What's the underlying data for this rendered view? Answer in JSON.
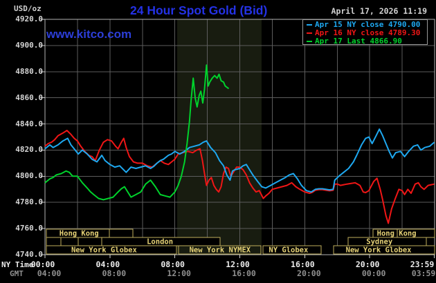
{
  "header": {
    "unit_label": "USD/oz",
    "title": "24 Hour Spot Gold (Bid)",
    "datetime": "April 17, 2026 11:19",
    "watermark": "www.kitco.com"
  },
  "colors": {
    "title_blue": "#2432e6",
    "watermark_blue": "#2c3ed8",
    "apr15_cyan": "#1ea8f0",
    "apr16_red": "#f01616",
    "apr17_green": "#00d22c",
    "session_border": "#bfae5c",
    "session_text": "#e6d276",
    "grid": "#5d5d5d",
    "plot_border": "#b5b5b5",
    "highlight_band": "#181c10",
    "tick_mark": "#cfcfcf"
  },
  "legend": {
    "items": [
      {
        "name": "apr15",
        "label": "Apr 15 NY close 4790.00",
        "color": "#1ea8f0"
      },
      {
        "name": "apr16",
        "label": "Apr 16 NY close 4789.30",
        "color": "#f01616"
      },
      {
        "name": "apr17",
        "label": "Apr 17 Last 4866.90",
        "color": "#00d22c"
      }
    ]
  },
  "y_axis": {
    "ticks": [
      "4920.0",
      "4900.0",
      "4880.0",
      "4860.0",
      "4840.0",
      "4820.0",
      "4800.0",
      "4780.0",
      "4760.0",
      "4740.0"
    ],
    "min": 4740,
    "max": 4920,
    "step": 20
  },
  "x_axis": {
    "ny_label": "NY Time",
    "gmt_label": "GMT",
    "tick_hours": [
      0,
      4,
      8,
      12,
      16,
      20,
      23.983
    ],
    "ny_ticks": [
      "00:00",
      "04:00",
      "08:00",
      "12:00",
      "16:00",
      "20:00",
      "23:59"
    ],
    "gmt_ticks": [
      "04:00",
      "08:00",
      "12:00",
      "16:00",
      "20:00",
      "00:00",
      "03:59"
    ]
  },
  "sessions": {
    "rows": [
      {
        "boxes": [
          {
            "start": 0.09,
            "end": 5.42,
            "divider": 3.96,
            "label": "Hong Kong",
            "label_center": 2.1
          },
          {
            "start": 20.2,
            "end": 24,
            "divider": 21.7,
            "label": "Hong Kong",
            "label_center": 21.66
          }
        ]
      },
      {
        "boxes": [
          {
            "start": 0.09,
            "end": 0.98
          },
          {
            "start": 0.98,
            "end": 2.05
          },
          {
            "start": 2.05,
            "end": 3.5
          },
          {
            "start": 3.5,
            "end": 10.78,
            "label": "London",
            "label_center": 7.08
          },
          {
            "start": 18.67,
            "end": 23.49,
            "label": "Sydney",
            "label_center": 20.6
          }
        ]
      },
      {
        "boxes": [
          {
            "start": 0.09,
            "end": 8.1,
            "label": "New York Globex",
            "label_center": 3.64
          },
          {
            "start": 8.23,
            "end": 13.3,
            "label": "New York NYMEX",
            "label_center": 10.78
          },
          {
            "start": 13.43,
            "end": 17.0,
            "label": "NY Globex",
            "label_center": 15.0
          },
          {
            "start": 17.77,
            "end": 24,
            "label": "New York Globex",
            "label_center": 20.55
          }
        ]
      }
    ]
  },
  "chart_data": {
    "type": "line",
    "title": "24 Hour Spot Gold (Bid)",
    "xlabel": "NY Time (hours)",
    "ylabel": "USD/oz",
    "xlim": [
      0,
      24
    ],
    "ylim": [
      4740,
      4920
    ],
    "y_step": 20,
    "grid": true,
    "legend_position": "top-right",
    "highlight_band_hours": [
      8.14,
      13.34
    ],
    "series": [
      {
        "name": "Apr 16",
        "close_label": "NY close 4789.30",
        "color": "#f01616",
        "points": [
          [
            0,
            4823
          ],
          [
            0.2,
            4825
          ],
          [
            0.4,
            4826
          ],
          [
            0.6,
            4828
          ],
          [
            0.8,
            4831
          ],
          [
            1.1,
            4833
          ],
          [
            1.35,
            4835
          ],
          [
            1.6,
            4832
          ],
          [
            1.8,
            4829
          ],
          [
            2,
            4827
          ],
          [
            2.2,
            4823
          ],
          [
            2.45,
            4819
          ],
          [
            2.7,
            4816
          ],
          [
            2.9,
            4815
          ],
          [
            3.1,
            4812
          ],
          [
            3.35,
            4820
          ],
          [
            3.6,
            4826
          ],
          [
            3.85,
            4828
          ],
          [
            4.1,
            4827
          ],
          [
            4.35,
            4823
          ],
          [
            4.5,
            4821
          ],
          [
            4.7,
            4826
          ],
          [
            4.85,
            4829
          ],
          [
            5,
            4822
          ],
          [
            5.2,
            4815
          ],
          [
            5.45,
            4811
          ],
          [
            5.7,
            4810
          ],
          [
            6,
            4810
          ],
          [
            6.3,
            4808
          ],
          [
            6.6,
            4807
          ],
          [
            6.9,
            4810
          ],
          [
            7.1,
            4812
          ],
          [
            7.35,
            4810
          ],
          [
            7.6,
            4809
          ],
          [
            7.8,
            4811
          ],
          [
            8,
            4813
          ],
          [
            8.2,
            4817
          ],
          [
            8.5,
            4818
          ],
          [
            8.8,
            4819
          ],
          [
            9.1,
            4818
          ],
          [
            9.35,
            4820
          ],
          [
            9.55,
            4821
          ],
          [
            9.7,
            4812
          ],
          [
            9.85,
            4800
          ],
          [
            9.95,
            4793
          ],
          [
            10.1,
            4797
          ],
          [
            10.25,
            4799
          ],
          [
            10.4,
            4793
          ],
          [
            10.55,
            4790
          ],
          [
            10.7,
            4788
          ],
          [
            10.85,
            4792
          ],
          [
            11,
            4802
          ],
          [
            11.15,
            4807
          ],
          [
            11.3,
            4806
          ],
          [
            11.45,
            4800
          ],
          [
            11.6,
            4803
          ],
          [
            11.8,
            4807
          ],
          [
            12,
            4807
          ],
          [
            12.2,
            4805
          ],
          [
            12.4,
            4801
          ],
          [
            12.6,
            4795
          ],
          [
            12.8,
            4791
          ],
          [
            13,
            4788
          ],
          [
            13.2,
            4789
          ],
          [
            13.45,
            4783
          ],
          [
            13.6,
            4785
          ],
          [
            13.8,
            4787
          ],
          [
            14,
            4790
          ],
          [
            14.3,
            4791
          ],
          [
            14.6,
            4792
          ],
          [
            14.9,
            4793
          ],
          [
            15.2,
            4795
          ],
          [
            15.45,
            4792
          ],
          [
            15.7,
            4790
          ],
          [
            16,
            4788
          ],
          [
            16.3,
            4787
          ],
          [
            16.65,
            4789.3
          ],
          [
            17.75,
            4789.3
          ],
          [
            17.85,
            4794
          ],
          [
            18.2,
            4793
          ],
          [
            18.6,
            4794
          ],
          [
            19.1,
            4795
          ],
          [
            19.4,
            4793
          ],
          [
            19.6,
            4788
          ],
          [
            19.75,
            4787.5
          ],
          [
            19.95,
            4789
          ],
          [
            20.25,
            4796
          ],
          [
            20.45,
            4798.5
          ],
          [
            20.65,
            4790
          ],
          [
            20.8,
            4782
          ],
          [
            21,
            4770
          ],
          [
            21.15,
            4764
          ],
          [
            21.35,
            4775
          ],
          [
            21.55,
            4782
          ],
          [
            21.8,
            4790
          ],
          [
            22,
            4789
          ],
          [
            22.15,
            4786
          ],
          [
            22.35,
            4790
          ],
          [
            22.55,
            4787
          ],
          [
            22.8,
            4794
          ],
          [
            23,
            4795
          ],
          [
            23.15,
            4792
          ],
          [
            23.35,
            4790
          ],
          [
            23.6,
            4793
          ],
          [
            23.98,
            4794
          ]
        ]
      },
      {
        "name": "Apr 15",
        "close_label": "NY close 4790.00",
        "color": "#1ea8f0",
        "points": [
          [
            0,
            4821
          ],
          [
            0.3,
            4824
          ],
          [
            0.5,
            4822
          ],
          [
            0.8,
            4824
          ],
          [
            1.1,
            4827
          ],
          [
            1.4,
            4829
          ],
          [
            1.6,
            4824
          ],
          [
            1.8,
            4821
          ],
          [
            2.05,
            4817
          ],
          [
            2.3,
            4820
          ],
          [
            2.6,
            4817
          ],
          [
            2.9,
            4813
          ],
          [
            3.2,
            4811
          ],
          [
            3.5,
            4816
          ],
          [
            3.7,
            4812
          ],
          [
            4,
            4809
          ],
          [
            4.3,
            4807
          ],
          [
            4.6,
            4808
          ],
          [
            5,
            4803
          ],
          [
            5.3,
            4807
          ],
          [
            5.6,
            4806
          ],
          [
            5.9,
            4807
          ],
          [
            6.2,
            4808
          ],
          [
            6.5,
            4806
          ],
          [
            6.9,
            4810
          ],
          [
            7.3,
            4813
          ],
          [
            7.6,
            4816
          ],
          [
            8,
            4819
          ],
          [
            8.3,
            4817
          ],
          [
            8.6,
            4819
          ],
          [
            8.9,
            4822
          ],
          [
            9.2,
            4823
          ],
          [
            9.5,
            4824
          ],
          [
            9.75,
            4826
          ],
          [
            9.95,
            4827
          ],
          [
            10.2,
            4822
          ],
          [
            10.5,
            4818
          ],
          [
            10.75,
            4812
          ],
          [
            11,
            4808
          ],
          [
            11.2,
            4801
          ],
          [
            11.4,
            4797
          ],
          [
            11.55,
            4804
          ],
          [
            11.7,
            4805
          ],
          [
            12,
            4806
          ],
          [
            12.2,
            4808
          ],
          [
            12.4,
            4809
          ],
          [
            12.6,
            4805
          ],
          [
            12.8,
            4801
          ],
          [
            13.1,
            4796
          ],
          [
            13.35,
            4792
          ],
          [
            13.6,
            4791
          ],
          [
            13.9,
            4793
          ],
          [
            14.2,
            4795
          ],
          [
            14.5,
            4797
          ],
          [
            14.8,
            4799
          ],
          [
            15.05,
            4801
          ],
          [
            15.3,
            4802
          ],
          [
            15.55,
            4798
          ],
          [
            15.8,
            4793
          ],
          [
            16.1,
            4789
          ],
          [
            16.4,
            4788
          ],
          [
            16.65,
            4790
          ],
          [
            17.75,
            4790
          ],
          [
            17.85,
            4797
          ],
          [
            18.1,
            4800
          ],
          [
            18.4,
            4803
          ],
          [
            18.7,
            4806
          ],
          [
            19,
            4811
          ],
          [
            19.2,
            4816
          ],
          [
            19.5,
            4824
          ],
          [
            19.75,
            4829
          ],
          [
            19.95,
            4830
          ],
          [
            20.15,
            4825
          ],
          [
            20.4,
            4831
          ],
          [
            20.6,
            4836
          ],
          [
            20.8,
            4831
          ],
          [
            21,
            4825
          ],
          [
            21.2,
            4819
          ],
          [
            21.4,
            4814
          ],
          [
            21.6,
            4818
          ],
          [
            21.9,
            4819
          ],
          [
            22.15,
            4815
          ],
          [
            22.4,
            4819
          ],
          [
            22.7,
            4823
          ],
          [
            22.95,
            4824
          ],
          [
            23.15,
            4820
          ],
          [
            23.4,
            4822
          ],
          [
            23.7,
            4823
          ],
          [
            23.98,
            4826
          ]
        ]
      },
      {
        "name": "Apr 17",
        "close_label": "Last 4866.90",
        "color": "#00d22c",
        "points": [
          [
            0,
            4795
          ],
          [
            0.3,
            4798
          ],
          [
            0.7,
            4801
          ],
          [
            1,
            4802
          ],
          [
            1.3,
            4804
          ],
          [
            1.5,
            4803
          ],
          [
            1.7,
            4800
          ],
          [
            2,
            4800
          ],
          [
            2.3,
            4795
          ],
          [
            2.6,
            4791
          ],
          [
            3,
            4786
          ],
          [
            3.3,
            4783
          ],
          [
            3.6,
            4782
          ],
          [
            3.9,
            4783
          ],
          [
            4.2,
            4784
          ],
          [
            4.5,
            4788
          ],
          [
            4.9,
            4792
          ],
          [
            5.1,
            4788
          ],
          [
            5.3,
            4784
          ],
          [
            5.6,
            4786
          ],
          [
            5.9,
            4788
          ],
          [
            6.2,
            4794
          ],
          [
            6.5,
            4797
          ],
          [
            6.8,
            4792
          ],
          [
            7.1,
            4786
          ],
          [
            7.4,
            4785
          ],
          [
            7.7,
            4784
          ],
          [
            8,
            4788
          ],
          [
            8.2,
            4793
          ],
          [
            8.4,
            4800
          ],
          [
            8.6,
            4811
          ],
          [
            8.75,
            4825
          ],
          [
            8.9,
            4842
          ],
          [
            9,
            4858
          ],
          [
            9.13,
            4875
          ],
          [
            9.25,
            4860
          ],
          [
            9.37,
            4853
          ],
          [
            9.5,
            4862
          ],
          [
            9.6,
            4865
          ],
          [
            9.72,
            4856
          ],
          [
            9.82,
            4866
          ],
          [
            9.95,
            4885
          ],
          [
            10.05,
            4869
          ],
          [
            10.15,
            4872
          ],
          [
            10.3,
            4875
          ],
          [
            10.45,
            4877
          ],
          [
            10.6,
            4875
          ],
          [
            10.72,
            4878
          ],
          [
            10.85,
            4873
          ],
          [
            11,
            4872
          ],
          [
            11.1,
            4869
          ],
          [
            11.32,
            4867
          ]
        ]
      }
    ]
  }
}
